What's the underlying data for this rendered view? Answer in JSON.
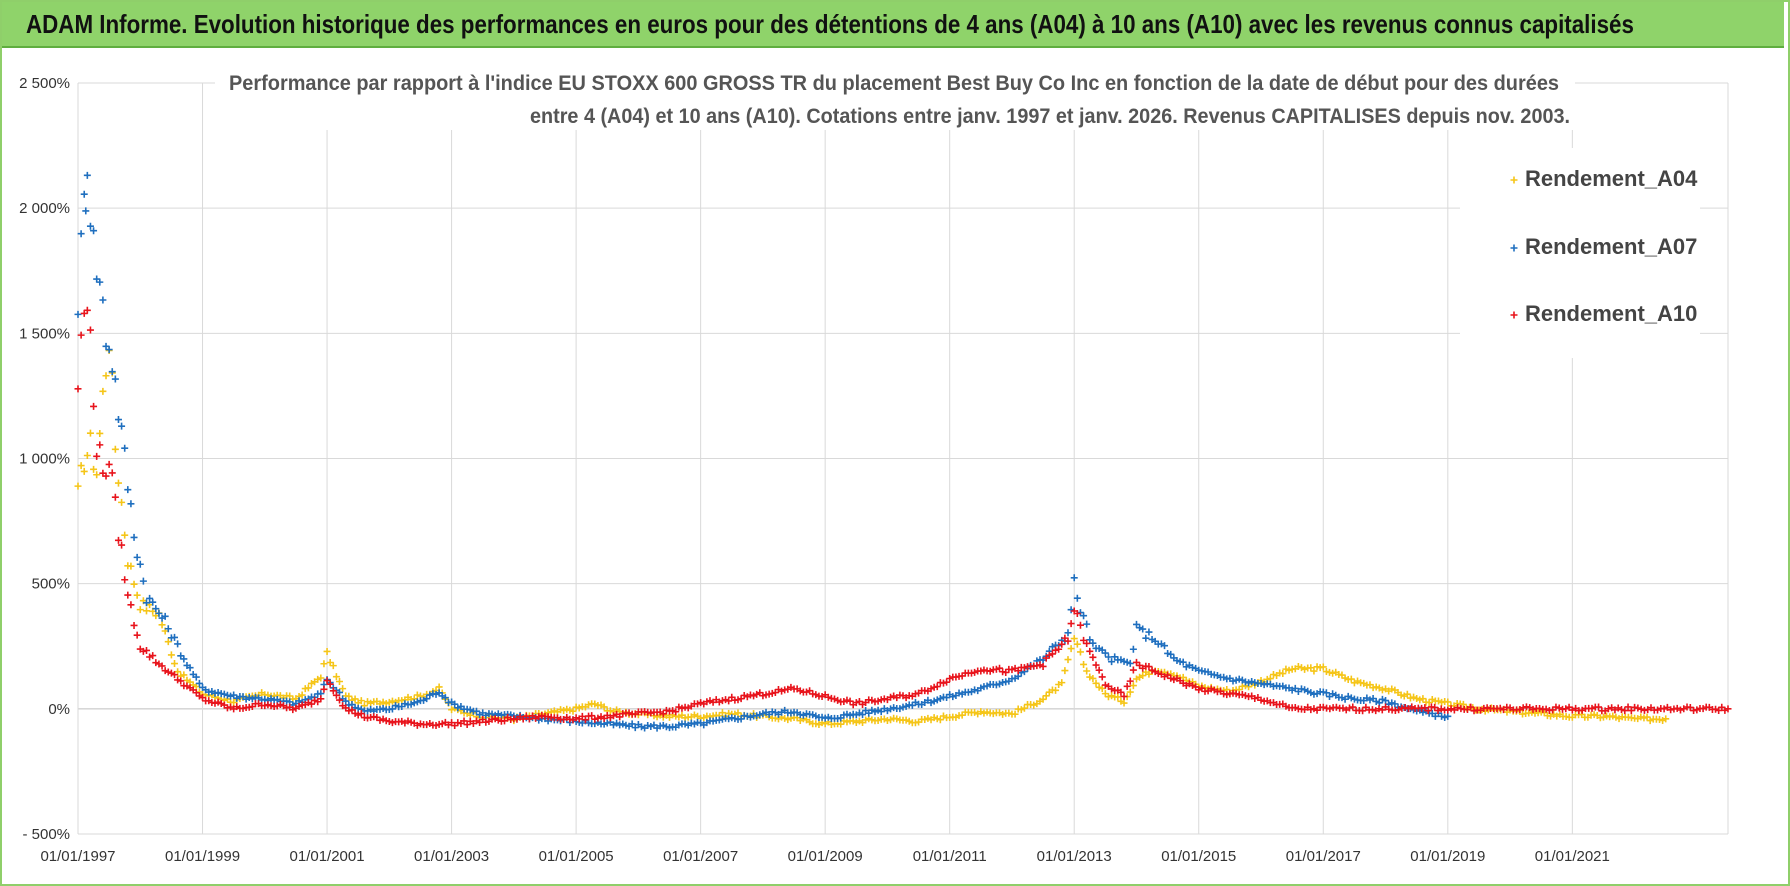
{
  "header": {
    "title": "ADAM Informe. Evolution historique des performances en euros pour des détentions de 4 ans (A04) à 10 ans (A10) avec les revenus connus capitalisés"
  },
  "colors": {
    "banner": "#8fd36a",
    "A04": "#f5c518",
    "A07": "#1f6fbf",
    "A10": "#e8141c",
    "grid": "#d9d9d9"
  },
  "chart_data": {
    "type": "scatter",
    "title_lines": [
      "Performance par rapport à l'indice EU STOXX 600 GROSS TR  du placement Best Buy Co Inc en fonction de la date de début pour des durées",
      "entre 4 (A04) et 10 ans (A10). Cotations entre janv. 1997 et janv. 2026. Revenus CAPITALISES depuis nov. 2003."
    ],
    "y_ticks": [
      -500,
      0,
      500,
      1000,
      1500,
      2000,
      2500
    ],
    "y_tick_labels": [
      "- 500%",
      "0%",
      "500%",
      "1 000%",
      "1 500%",
      "2 000%",
      "2 500%"
    ],
    "ylim": [
      -500,
      2500
    ],
    "xlim": [
      1997.0,
      2023.5
    ],
    "x_ticks": [
      1997,
      1999,
      2001,
      2003,
      2005,
      2007,
      2009,
      2011,
      2013,
      2015,
      2017,
      2019,
      2021
    ],
    "x_tick_labels": [
      "01/01/1997",
      "01/01/1999",
      "01/01/2001",
      "01/01/2003",
      "01/01/2005",
      "01/01/2007",
      "01/01/2009",
      "01/01/2011",
      "01/01/2013",
      "01/01/2015",
      "01/01/2017",
      "01/01/2019",
      "01/01/2021"
    ],
    "legend_position": "top-right",
    "grid": true,
    "series": [
      {
        "name": "Rendement_A04",
        "color": "#f5c518",
        "x": [
          1997.0,
          1997.1,
          1997.2,
          1997.3,
          1997.4,
          1997.5,
          1997.6,
          1997.8,
          1998.0,
          1998.3,
          1998.6,
          1999.0,
          1999.5,
          2000.0,
          2000.5,
          2000.9,
          2001.0,
          2001.3,
          2001.6,
          2002.0,
          2002.5,
          2002.8,
          2003.0,
          2003.5,
          2004.0,
          2004.5,
          2005.0,
          2005.3,
          2005.6,
          2006.0,
          2006.5,
          2007.0,
          2007.5,
          2008.0,
          2008.5,
          2009.0,
          2009.5,
          2010.0,
          2010.5,
          2011.0,
          2011.5,
          2012.0,
          2012.5,
          2012.8,
          2013.0,
          2013.2,
          2013.5,
          2013.8,
          2014.0,
          2014.3,
          2014.6,
          2015.0,
          2015.5,
          2016.0,
          2016.5,
          2017.0,
          2017.5,
          2018.0,
          2018.5,
          2019.0,
          2019.5,
          2020.0,
          2020.5,
          2021.0,
          2021.5,
          2022.0,
          2022.5
        ],
        "y": [
          850,
          1000,
          1050,
          950,
          1250,
          1500,
          1050,
          600,
          420,
          380,
          150,
          60,
          30,
          60,
          40,
          130,
          220,
          50,
          20,
          30,
          50,
          80,
          0,
          -30,
          -40,
          -20,
          0,
          20,
          -10,
          -20,
          -30,
          -30,
          -20,
          -30,
          -40,
          -60,
          -50,
          -40,
          -50,
          -30,
          -10,
          -20,
          40,
          100,
          280,
          150,
          60,
          30,
          120,
          160,
          140,
          90,
          70,
          110,
          160,
          160,
          110,
          80,
          40,
          20,
          0,
          -10,
          -20,
          -30,
          -30,
          -40,
          -40
        ]
      },
      {
        "name": "Rendement_A07",
        "color": "#1f6fbf",
        "x": [
          1997.0,
          1997.1,
          1997.15,
          1997.25,
          1997.35,
          1997.45,
          1997.55,
          1997.7,
          1997.9,
          1998.1,
          1998.4,
          1998.7,
          1999.0,
          1999.5,
          2000.0,
          2000.5,
          2000.9,
          2001.0,
          2001.3,
          2001.6,
          2002.0,
          2002.5,
          2002.8,
          2003.0,
          2003.5,
          2004.0,
          2004.5,
          2005.0,
          2005.5,
          2006.0,
          2006.5,
          2007.0,
          2007.5,
          2008.0,
          2008.5,
          2009.0,
          2009.5,
          2010.0,
          2010.5,
          2011.0,
          2011.5,
          2012.0,
          2012.5,
          2012.9,
          2013.0,
          2013.1,
          2013.3,
          2013.6,
          2013.9,
          2014.0,
          2014.3,
          2014.6,
          2015.0,
          2015.5,
          2016.0,
          2016.5,
          2017.0,
          2017.5,
          2018.0,
          2018.5,
          2019.0
        ],
        "y": [
          1650,
          2000,
          2200,
          1850,
          1700,
          1500,
          1400,
          1100,
          700,
          450,
          350,
          200,
          80,
          50,
          40,
          20,
          60,
          120,
          30,
          -10,
          0,
          30,
          70,
          20,
          -20,
          -30,
          -40,
          -50,
          -60,
          -70,
          -70,
          -60,
          -40,
          -20,
          -10,
          -40,
          -20,
          0,
          20,
          50,
          80,
          120,
          200,
          300,
          500,
          400,
          250,
          200,
          180,
          320,
          280,
          200,
          150,
          120,
          100,
          80,
          60,
          40,
          30,
          -10,
          -30
        ]
      },
      {
        "name": "Rendement_A10",
        "color": "#e8141c",
        "x": [
          1997.0,
          1997.1,
          1997.2,
          1997.3,
          1997.4,
          1997.5,
          1997.6,
          1997.8,
          1998.0,
          1998.3,
          1998.6,
          1999.0,
          1999.5,
          2000.0,
          2000.5,
          2000.9,
          2001.0,
          2001.3,
          2001.6,
          2002.0,
          2002.5,
          2003.0,
          2003.5,
          2004.0,
          2004.5,
          2005.0,
          2005.5,
          2006.0,
          2006.5,
          2007.0,
          2007.5,
          2008.0,
          2008.5,
          2009.0,
          2009.5,
          2010.0,
          2010.5,
          2011.0,
          2011.5,
          2012.0,
          2012.5,
          2012.9,
          2013.0,
          2013.2,
          2013.5,
          2013.8,
          2014.0,
          2014.3,
          2014.6,
          2015.0,
          2015.5,
          2016.0,
          2016.5,
          2017.0,
          2018.0,
          2019.0,
          2020.0,
          2021.0,
          2022.0,
          2023.0,
          2023.5
        ],
        "y": [
          1300,
          1600,
          1500,
          1050,
          950,
          1000,
          800,
          450,
          250,
          180,
          120,
          40,
          0,
          20,
          0,
          40,
          120,
          0,
          -30,
          -50,
          -60,
          -60,
          -50,
          -40,
          -30,
          -40,
          -30,
          -20,
          -10,
          20,
          40,
          60,
          80,
          50,
          20,
          40,
          60,
          120,
          160,
          150,
          180,
          280,
          400,
          250,
          100,
          50,
          180,
          150,
          120,
          80,
          60,
          40,
          0,
          0,
          0,
          0,
          0,
          0,
          0,
          0,
          0
        ]
      }
    ]
  }
}
